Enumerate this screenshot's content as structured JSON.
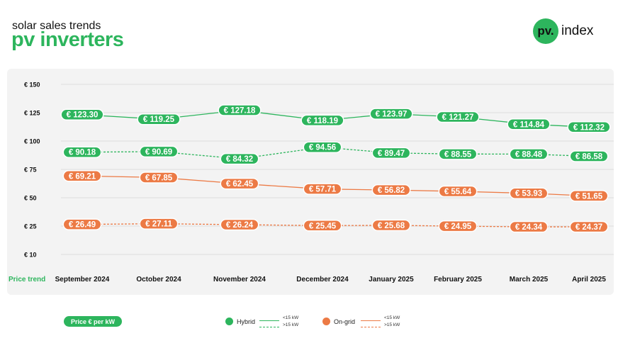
{
  "header": {
    "subtitle": "solar sales trends",
    "title": "pv inverters"
  },
  "logo": {
    "mark": "pv.",
    "text": "index"
  },
  "chart_data": {
    "type": "line",
    "categories": [
      "September 2024",
      "October 2024",
      "November 2024",
      "December 2024",
      "January 2025",
      "February 2025",
      "March 2025",
      "April 2025"
    ],
    "x_row_label": "Price trend",
    "y_ticks": [
      "€ 150",
      "€ 125",
      "€ 100",
      "€ 75",
      "€ 50",
      "€ 25",
      "€ 10"
    ],
    "grid": true,
    "series": [
      {
        "group": "Hybrid",
        "size": "<15 kW",
        "style": "solid",
        "color": "#2db55d",
        "values": [
          123.3,
          119.25,
          127.18,
          118.19,
          123.97,
          121.27,
          114.84,
          112.32
        ],
        "labels": [
          "€ 123.30",
          "€ 119.25",
          "€ 127.18",
          "€ 118.19",
          "€ 123.97",
          "€ 121.27",
          "€ 114.84",
          "€ 112.32"
        ]
      },
      {
        "group": "Hybrid",
        "size": ">15 kW",
        "style": "dashed",
        "color": "#2db55d",
        "values": [
          90.18,
          90.69,
          84.32,
          94.56,
          89.47,
          88.55,
          88.48,
          86.58
        ],
        "labels": [
          "€ 90.18",
          "€ 90.69",
          "€ 84.32",
          "€ 94.56",
          "€ 89.47",
          "€ 88.55",
          "€ 88.48",
          "€ 86.58"
        ]
      },
      {
        "group": "On-grid",
        "size": "<15 kW",
        "style": "solid",
        "color": "#ec7a45",
        "values": [
          69.21,
          67.85,
          62.45,
          57.71,
          56.82,
          55.64,
          53.93,
          51.65
        ],
        "labels": [
          "€ 69.21",
          "€ 67.85",
          "€ 62.45",
          "€ 57.71",
          "€ 56.82",
          "€ 55.64",
          "€ 53.93",
          "€ 51.65"
        ]
      },
      {
        "group": "On-grid",
        "size": ">15 kW",
        "style": "dashed",
        "color": "#ec7a45",
        "values": [
          26.49,
          27.11,
          26.24,
          25.45,
          25.68,
          24.95,
          24.34,
          24.37
        ],
        "labels": [
          "€ 26.49",
          "€ 27.11",
          "€ 26.24",
          "€ 25.45",
          "€ 25.68",
          "€ 24.95",
          "€ 24.34",
          "€ 24.37"
        ]
      }
    ]
  },
  "legend": {
    "price_pill": "Price € per kW",
    "hybrid": {
      "label": "Hybrid",
      "color": "#2db55d",
      "lt": "<15 kW",
      "gt": ">15 kW"
    },
    "ongrid": {
      "label": "On-grid",
      "color": "#ec7a45",
      "lt": "<15 kW",
      "gt": ">15 kW"
    }
  }
}
